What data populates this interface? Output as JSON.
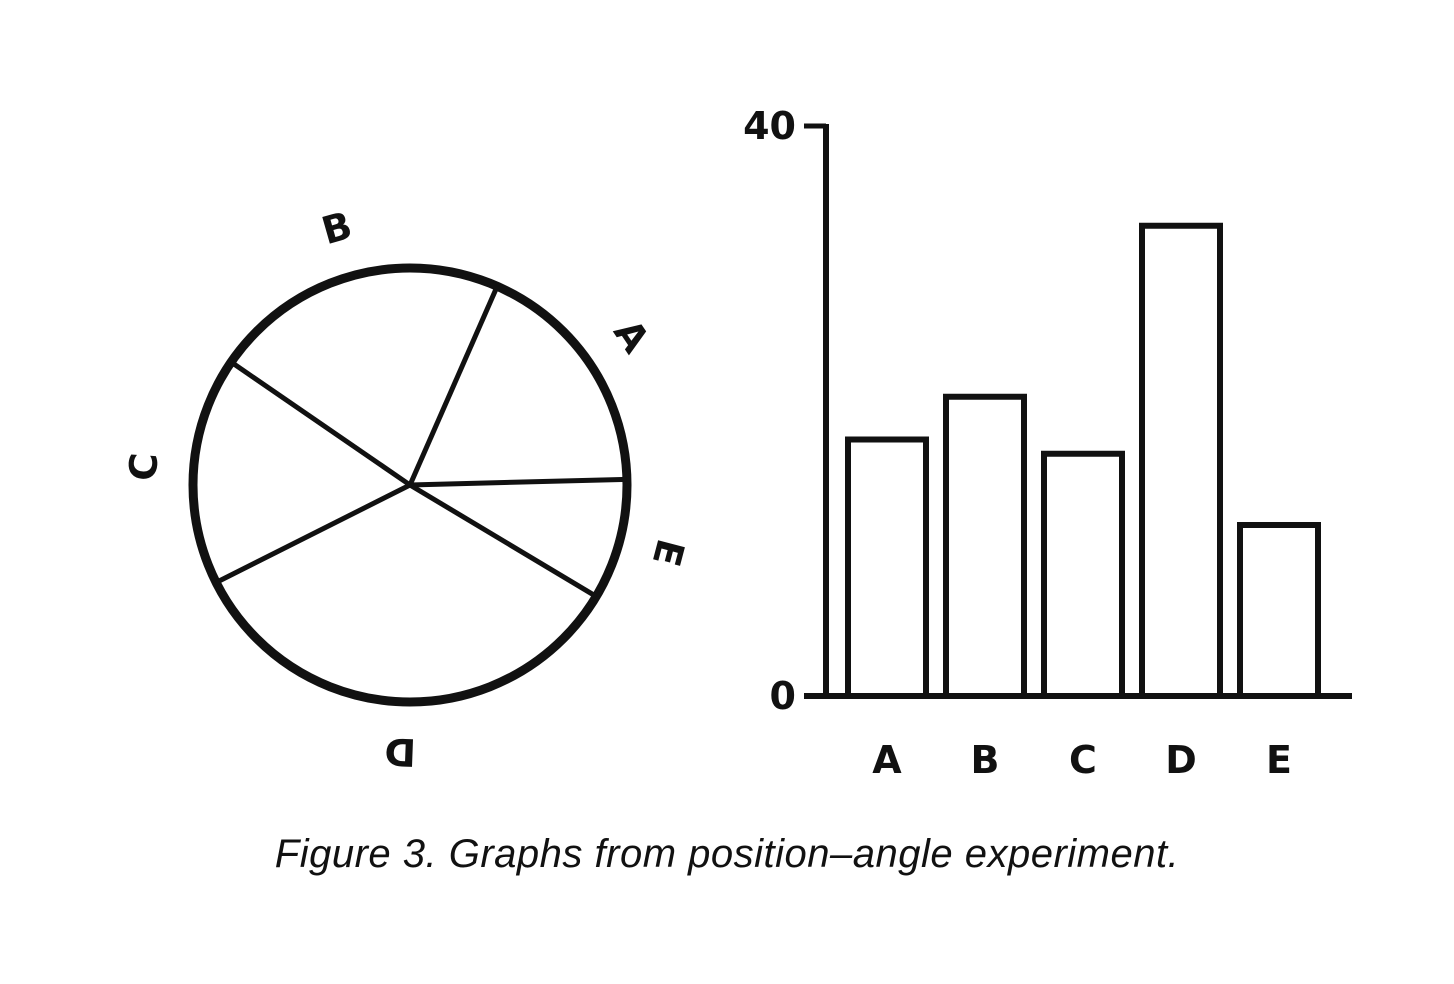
{
  "caption": "Figure 3. Graphs from position–angle experiment.",
  "chart_data": [
    {
      "type": "pie",
      "labels": [
        "A",
        "B",
        "C",
        "D",
        "E"
      ],
      "values": [
        18,
        22,
        17,
        34,
        9
      ],
      "title": "",
      "legend": "labels outside slices, rotated"
    },
    {
      "type": "bar",
      "categories": [
        "A",
        "B",
        "C",
        "D",
        "E"
      ],
      "values": [
        18,
        21,
        17,
        33,
        12
      ],
      "ylim": [
        0,
        40
      ],
      "yticks": [
        0,
        40
      ],
      "xlabel": "",
      "ylabel": "",
      "title": "",
      "grid": false
    }
  ]
}
